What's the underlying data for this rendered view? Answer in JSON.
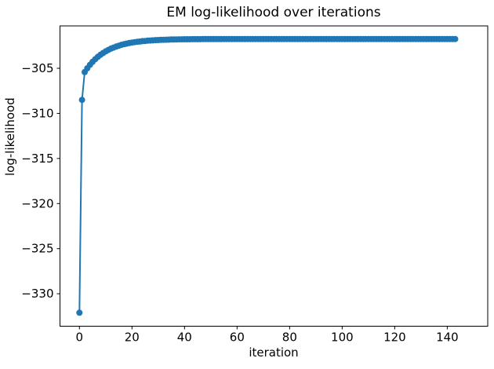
{
  "chart_data": {
    "type": "line",
    "title": "EM log-likelihood over iterations",
    "xlabel": "iteration",
    "ylabel": "log-likelihood",
    "grid": false,
    "legend": null,
    "xlim": [
      -7.4,
      155.4
    ],
    "ylim": [
      -333.6,
      -300.3
    ],
    "xticks": {
      "values": [
        0,
        20,
        40,
        60,
        80,
        100,
        120,
        140
      ],
      "labels": [
        "0",
        "20",
        "40",
        "60",
        "80",
        "100",
        "120",
        "140"
      ]
    },
    "yticks": {
      "values": [
        -330,
        -325,
        -320,
        -315,
        -310,
        -305
      ],
      "labels": [
        "−330",
        "−325",
        "−320",
        "−315",
        "−310",
        "−305"
      ]
    },
    "series": [
      {
        "name": "log-likelihood",
        "color": "#1f77b4",
        "marker": "circle",
        "x_start": 0,
        "x_step": 1,
        "values": [
          -332.1,
          -308.5,
          -305.42,
          -305.0,
          -304.62,
          -304.29,
          -303.99,
          -303.73,
          -303.5,
          -303.3,
          -303.12,
          -302.96,
          -302.82,
          -302.7,
          -302.59,
          -302.49,
          -302.4,
          -302.33,
          -302.26,
          -302.2,
          -302.15,
          -302.1,
          -302.06,
          -302.03,
          -301.99,
          -301.97,
          -301.94,
          -301.92,
          -301.9,
          -301.88,
          -301.87,
          -301.85,
          -301.84,
          -301.83,
          -301.82,
          -301.81,
          -301.81,
          -301.8,
          -301.79,
          -301.79,
          -301.78,
          -301.78,
          -301.78,
          -301.77,
          -301.77,
          -301.77,
          -301.77,
          -301.76,
          -301.76,
          -301.76,
          -301.76,
          -301.76,
          -301.76,
          -301.76,
          -301.76,
          -301.75,
          -301.75,
          -301.75,
          -301.75,
          -301.75,
          -301.75,
          -301.75,
          -301.75,
          -301.75,
          -301.75,
          -301.75,
          -301.75,
          -301.75,
          -301.75,
          -301.75,
          -301.75,
          -301.75,
          -301.75,
          -301.75,
          -301.75,
          -301.75,
          -301.75,
          -301.75,
          -301.75,
          -301.75,
          -301.75,
          -301.75,
          -301.75,
          -301.75,
          -301.75,
          -301.75,
          -301.75,
          -301.75,
          -301.75,
          -301.75,
          -301.75,
          -301.75,
          -301.75,
          -301.75,
          -301.75,
          -301.75,
          -301.75,
          -301.75,
          -301.75,
          -301.75,
          -301.75,
          -301.75,
          -301.75,
          -301.75,
          -301.75,
          -301.75,
          -301.75,
          -301.75,
          -301.75,
          -301.75,
          -301.75,
          -301.75,
          -301.75,
          -301.75,
          -301.75,
          -301.75,
          -301.75,
          -301.75,
          -301.75,
          -301.75,
          -301.75,
          -301.75,
          -301.75,
          -301.75,
          -301.75,
          -301.75,
          -301.75,
          -301.75,
          -301.75,
          -301.75,
          -301.75,
          -301.75,
          -301.75,
          -301.75,
          -301.75,
          -301.75,
          -301.75,
          -301.75,
          -301.75,
          -301.75,
          -301.75,
          -301.75,
          -301.75,
          -301.75
        ]
      }
    ]
  }
}
